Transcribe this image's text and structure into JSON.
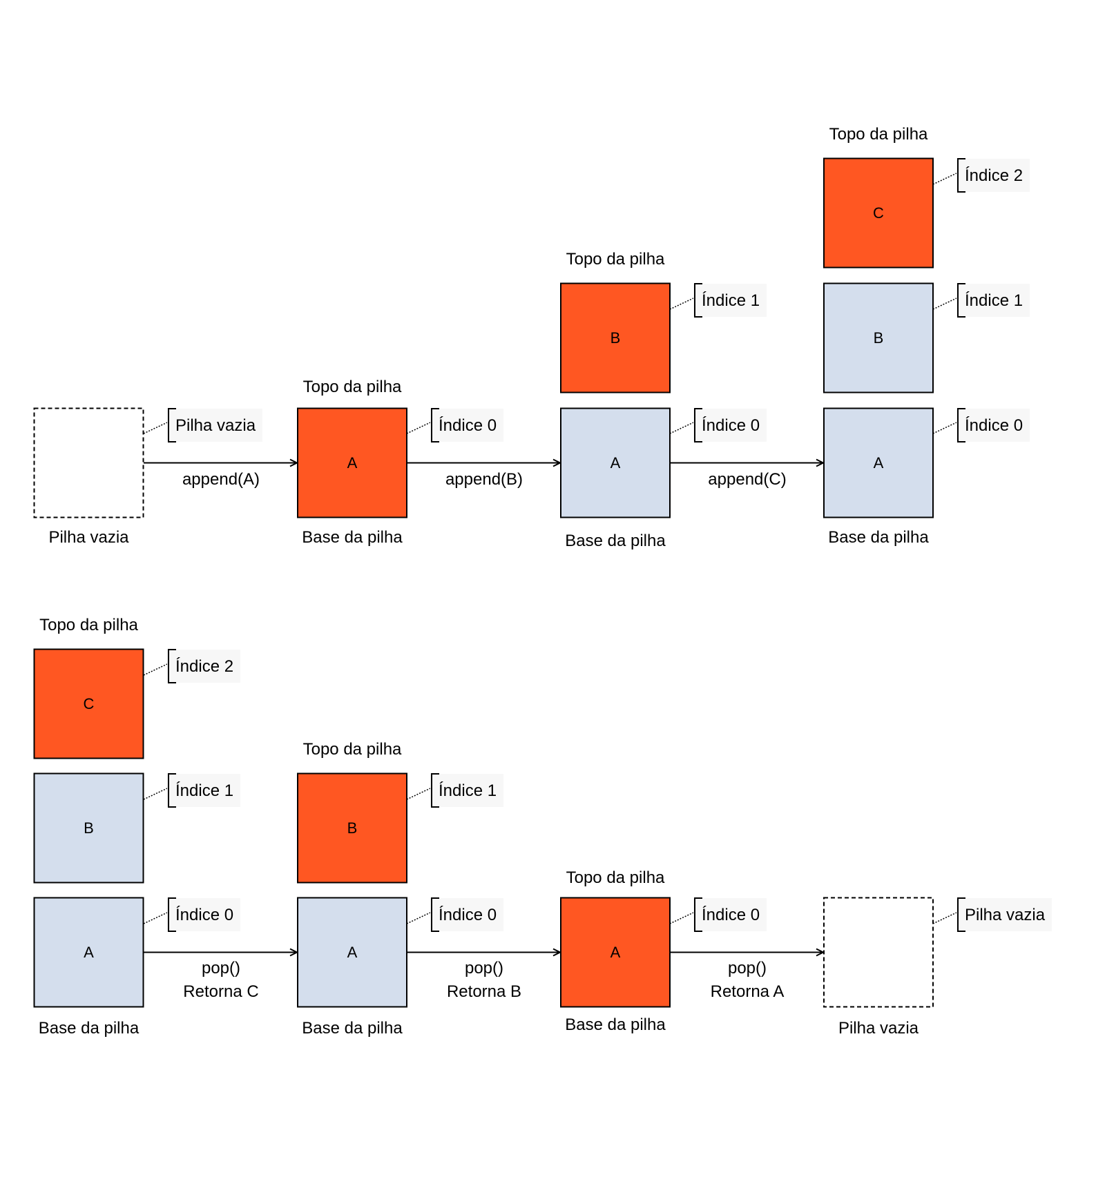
{
  "colors": {
    "top_fill": "#FF5722",
    "stack_fill": "#D4DEED",
    "empty_fill": "#FFFFFF",
    "stroke": "#000000",
    "note_bg": "#F7F7F7"
  },
  "push_row": {
    "empty": {
      "caption": "Pilha vazia",
      "note": "Pilha vazia"
    },
    "transitions": [
      {
        "label": "append(A)"
      },
      {
        "label": "append(B)"
      },
      {
        "label": "append(C)"
      }
    ],
    "stacks": [
      {
        "top_label": "Topo da pilha",
        "base_label": "Base da pilha",
        "items": [
          {
            "value": "A",
            "is_top": true,
            "index_label": "Índice 0"
          }
        ]
      },
      {
        "top_label": "Topo da pilha",
        "base_label": "Base da pilha",
        "items": [
          {
            "value": "B",
            "is_top": true,
            "index_label": "Índice 1"
          },
          {
            "value": "A",
            "is_top": false,
            "index_label": "Índice 0"
          }
        ]
      },
      {
        "top_label": "Topo da pilha",
        "base_label": "Base da pilha",
        "items": [
          {
            "value": "C",
            "is_top": true,
            "index_label": "Índice 2"
          },
          {
            "value": "B",
            "is_top": false,
            "index_label": "Índice 1"
          },
          {
            "value": "A",
            "is_top": false,
            "index_label": "Índice 0"
          }
        ]
      }
    ]
  },
  "pop_row": {
    "stacks": [
      {
        "top_label": "Topo da pilha",
        "base_label": "Base da pilha",
        "items": [
          {
            "value": "C",
            "is_top": true,
            "index_label": "Índice 2"
          },
          {
            "value": "B",
            "is_top": false,
            "index_label": "Índice 1"
          },
          {
            "value": "A",
            "is_top": false,
            "index_label": "Índice 0"
          }
        ]
      },
      {
        "top_label": "Topo da pilha",
        "base_label": "Base da pilha",
        "items": [
          {
            "value": "B",
            "is_top": true,
            "index_label": "Índice 1"
          },
          {
            "value": "A",
            "is_top": false,
            "index_label": "Índice 0"
          }
        ]
      },
      {
        "top_label": "Topo da pilha",
        "base_label": "Base da pilha",
        "items": [
          {
            "value": "A",
            "is_top": true,
            "index_label": "Índice 0"
          }
        ]
      }
    ],
    "transitions": [
      {
        "label": "pop()",
        "result": "Retorna C"
      },
      {
        "label": "pop()",
        "result": "Retorna B"
      },
      {
        "label": "pop()",
        "result": "Retorna A"
      }
    ],
    "empty": {
      "caption": "Pilha vazia",
      "note": "Pilha vazia"
    }
  }
}
